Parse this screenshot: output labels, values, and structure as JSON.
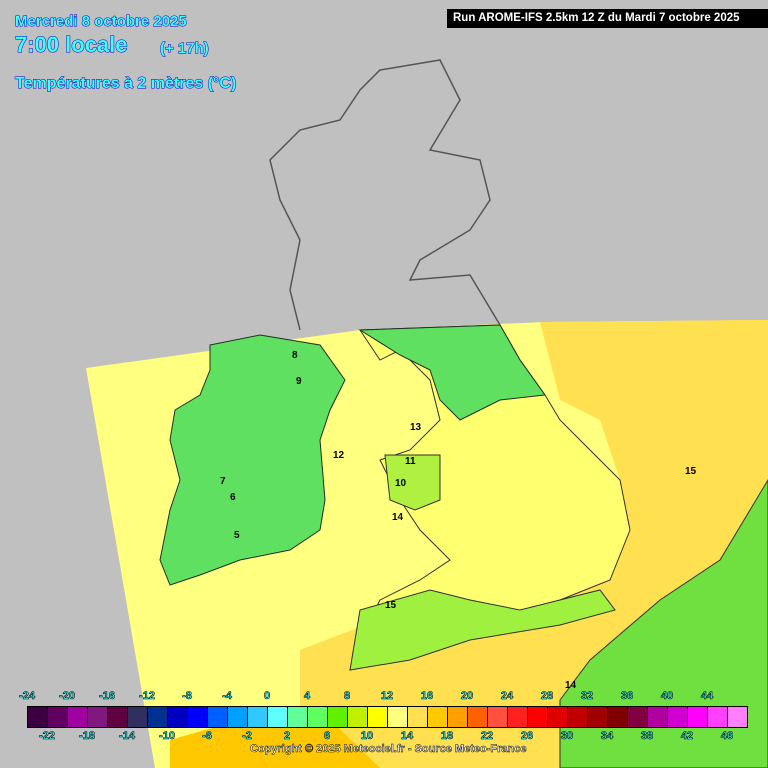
{
  "header": {
    "date": "Mercredi 8 octobre 2025",
    "time": "7:00 locale",
    "offset": "(+ 17h)",
    "parameter": "Températures à 2 mètres (°C)"
  },
  "run_label": "Run AROME-IFS 2.5km 12 Z du Mardi 7 octobre 2025",
  "colorbar": {
    "top_labels": [
      "-24",
      "-20",
      "-16",
      "-12",
      "-8",
      "-4",
      "0",
      "4",
      "8",
      "12",
      "16",
      "20",
      "24",
      "28",
      "32",
      "36",
      "40",
      "44"
    ],
    "bottom_labels": [
      "-22",
      "-18",
      "-14",
      "-10",
      "-6",
      "-2",
      "2",
      "6",
      "10",
      "14",
      "18",
      "22",
      "26",
      "30",
      "34",
      "38",
      "42",
      "46"
    ],
    "colors": [
      "#3c0040",
      "#600060",
      "#a000a0",
      "#801880",
      "#600040",
      "#303060",
      "#003090",
      "#0000c0",
      "#0000ff",
      "#0060ff",
      "#00a0ff",
      "#30c8ff",
      "#60ffff",
      "#60ff98",
      "#60ff60",
      "#60f000",
      "#c0f000",
      "#ffff00",
      "#ffff80",
      "#ffe050",
      "#ffc800",
      "#ffa000",
      "#ff6000",
      "#ff5040",
      "#ff2020",
      "#ff0000",
      "#e00000",
      "#c00000",
      "#a00000",
      "#800000",
      "#800040",
      "#b000a0",
      "#d000d0",
      "#ff00ff",
      "#ff40ff",
      "#ff80ff"
    ]
  },
  "map_labels": [
    "15",
    "12",
    "13",
    "14",
    "11",
    "10",
    "9",
    "8",
    "7",
    "6",
    "5",
    "15",
    "14"
  ],
  "copyright": "Copyright © 2025 Meteociel.fr - Source Meteo-France"
}
